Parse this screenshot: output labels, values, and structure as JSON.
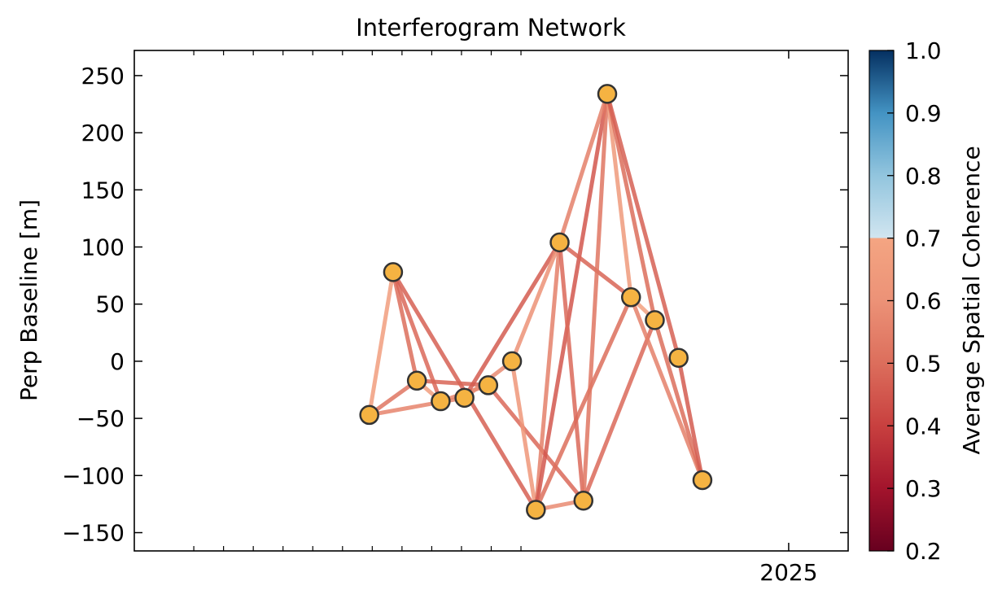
{
  "chart_data": {
    "type": "scatter",
    "title": "Interferogram Network",
    "xlabel": "",
    "ylabel": "Perp Baseline [m]",
    "ylim": [
      -166,
      272
    ],
    "y_ticks": [
      250,
      200,
      150,
      100,
      50,
      0,
      -50,
      -100,
      -150
    ],
    "y_tick_labels": [
      "250",
      "200",
      "150",
      "100",
      "50",
      "0",
      "−50",
      "−100",
      "−150"
    ],
    "x_tick_labels": [
      {
        "x": 2025.0,
        "label": "2025"
      }
    ],
    "x_minor_ticks": [
      2023.0,
      2023.1,
      2023.2,
      2023.3,
      2023.4,
      2023.5,
      2023.6,
      2023.7,
      2023.8,
      2023.9,
      2024.0,
      2024.1
    ],
    "xlim": [
      2022.8,
      2025.2
    ],
    "grid": false,
    "marker_color": "#f5b342",
    "marker_edge_color": "#333333",
    "acquisitions": [
      {
        "id": 0,
        "x": 2023.59,
        "y": -47
      },
      {
        "id": 1,
        "x": 2023.67,
        "y": 78
      },
      {
        "id": 2,
        "x": 2023.75,
        "y": -17
      },
      {
        "id": 3,
        "x": 2023.83,
        "y": -35
      },
      {
        "id": 4,
        "x": 2023.91,
        "y": -32
      },
      {
        "id": 5,
        "x": 2023.99,
        "y": -21
      },
      {
        "id": 6,
        "x": 2024.07,
        "y": 0
      },
      {
        "id": 7,
        "x": 2024.15,
        "y": -130
      },
      {
        "id": 8,
        "x": 2024.23,
        "y": 104
      },
      {
        "id": 9,
        "x": 2024.31,
        "y": -122
      },
      {
        "id": 10,
        "x": 2024.39,
        "y": 234
      },
      {
        "id": 11,
        "x": 2024.47,
        "y": 56
      },
      {
        "id": 12,
        "x": 2024.55,
        "y": 36
      },
      {
        "id": 13,
        "x": 2024.63,
        "y": 3
      },
      {
        "id": 14,
        "x": 2024.71,
        "y": -104
      }
    ],
    "pairs": [
      {
        "from": 0,
        "to": 1,
        "coherence": 0.66
      },
      {
        "from": 0,
        "to": 2,
        "coherence": 0.52
      },
      {
        "from": 0,
        "to": 4,
        "coherence": 0.56
      },
      {
        "from": 1,
        "to": 2,
        "coherence": 0.5
      },
      {
        "from": 1,
        "to": 3,
        "coherence": 0.49
      },
      {
        "from": 1,
        "to": 7,
        "coherence": 0.47
      },
      {
        "from": 2,
        "to": 3,
        "coherence": 0.66
      },
      {
        "from": 2,
        "to": 5,
        "coherence": 0.48
      },
      {
        "from": 3,
        "to": 5,
        "coherence": 0.56
      },
      {
        "from": 4,
        "to": 6,
        "coherence": 0.58
      },
      {
        "from": 4,
        "to": 8,
        "coherence": 0.46
      },
      {
        "from": 5,
        "to": 9,
        "coherence": 0.49
      },
      {
        "from": 6,
        "to": 7,
        "coherence": 0.62
      },
      {
        "from": 6,
        "to": 8,
        "coherence": 0.6
      },
      {
        "from": 7,
        "to": 8,
        "coherence": 0.55
      },
      {
        "from": 7,
        "to": 9,
        "coherence": 0.58
      },
      {
        "from": 7,
        "to": 10,
        "coherence": 0.45
      },
      {
        "from": 7,
        "to": 11,
        "coherence": 0.5
      },
      {
        "from": 8,
        "to": 9,
        "coherence": 0.49
      },
      {
        "from": 8,
        "to": 10,
        "coherence": 0.55
      },
      {
        "from": 8,
        "to": 11,
        "coherence": 0.48
      },
      {
        "from": 9,
        "to": 10,
        "coherence": 0.52
      },
      {
        "from": 9,
        "to": 12,
        "coherence": 0.49
      },
      {
        "from": 10,
        "to": 11,
        "coherence": 0.64
      },
      {
        "from": 10,
        "to": 12,
        "coherence": 0.5
      },
      {
        "from": 10,
        "to": 13,
        "coherence": 0.47
      },
      {
        "from": 11,
        "to": 12,
        "coherence": 0.68
      },
      {
        "from": 11,
        "to": 14,
        "coherence": 0.55
      },
      {
        "from": 12,
        "to": 14,
        "coherence": 0.5
      },
      {
        "from": 13,
        "to": 14,
        "coherence": 0.46
      }
    ],
    "colorbar": {
      "label": "Average Spatial Coherence",
      "range": [
        0.2,
        1.0
      ],
      "ticks": [
        1.0,
        0.9,
        0.8,
        0.7,
        0.6,
        0.5,
        0.4,
        0.3,
        0.2
      ],
      "tick_labels": [
        "1.0",
        "0.9",
        "0.8",
        "0.7",
        "0.6",
        "0.5",
        "0.4",
        "0.3",
        "0.2"
      ],
      "colormap": "RdBu",
      "color_stops": [
        {
          "v": 0.2,
          "c": "#67001f"
        },
        {
          "v": 0.3,
          "c": "#a3142c"
        },
        {
          "v": 0.4,
          "c": "#c8403f"
        },
        {
          "v": 0.5,
          "c": "#dc6e5c"
        },
        {
          "v": 0.6,
          "c": "#ec9277"
        },
        {
          "v": 0.7,
          "c": "#f4a582"
        },
        {
          "v": 0.7001,
          "c": "#d1e5f0"
        },
        {
          "v": 0.8,
          "c": "#92c5de"
        },
        {
          "v": 0.9,
          "c": "#4393c3"
        },
        {
          "v": 1.0,
          "c": "#053061"
        }
      ]
    }
  }
}
